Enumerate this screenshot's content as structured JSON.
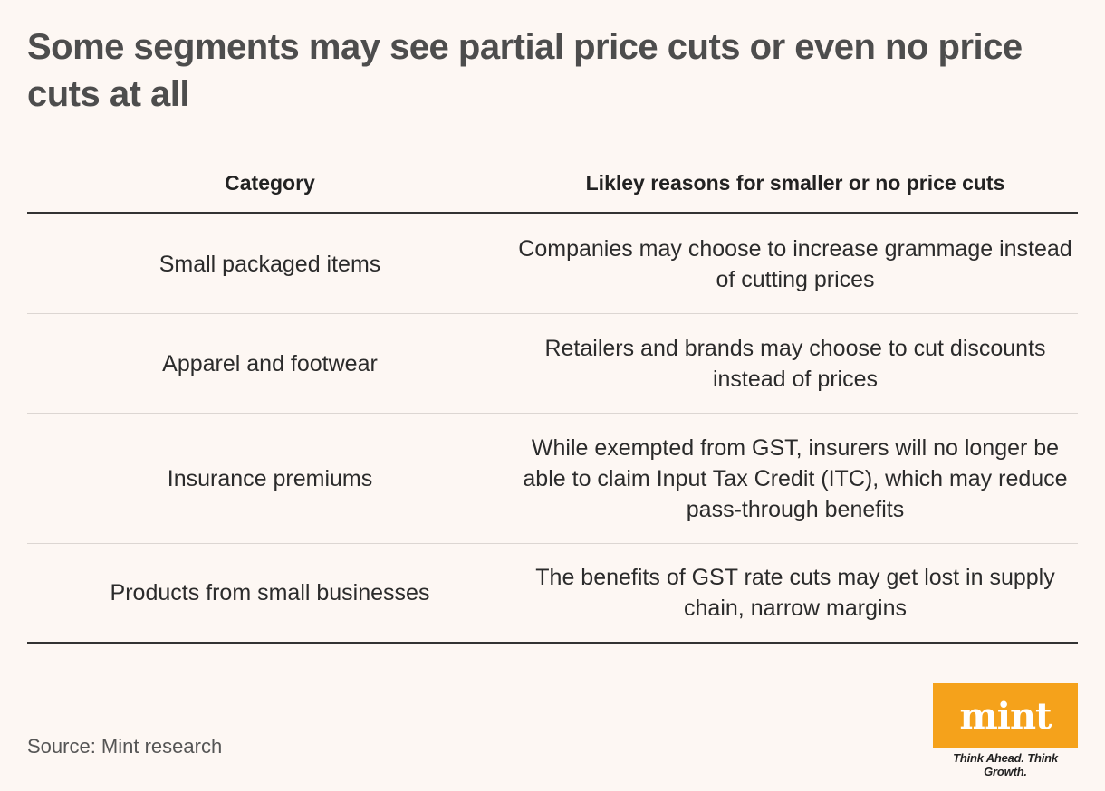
{
  "title": "Some segments may see partial price cuts or even no price cuts at all",
  "chart_data": {
    "type": "table",
    "columns": [
      "Category",
      "Likley reasons for smaller or no price cuts"
    ],
    "rows": [
      [
        "Small packaged items",
        "Companies may choose to increase grammage instead of cutting prices"
      ],
      [
        "Apparel and footwear",
        "Retailers and brands may choose to cut discounts instead of prices"
      ],
      [
        "Insurance premiums",
        "While exempted from GST, insurers will no longer be able to claim Input Tax Credit (ITC), which may reduce pass-through benefits"
      ],
      [
        "Products from small businesses",
        "The benefits of GST rate cuts may get lost in supply chain, narrow margins"
      ]
    ]
  },
  "source": "Source: Mint research",
  "logo": {
    "text": "mint",
    "tagline": "Think Ahead. Think Growth.",
    "color": "#f5a21b"
  }
}
